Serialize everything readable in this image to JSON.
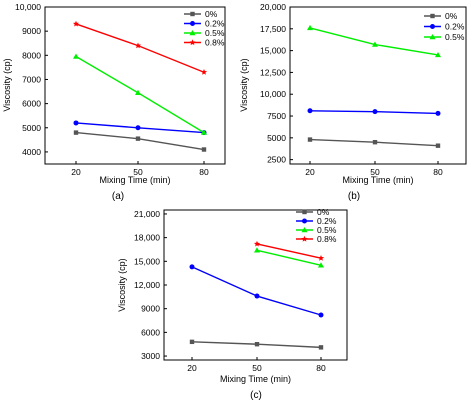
{
  "chart_data": [
    {
      "type": "line",
      "panel_label": "(a)",
      "xlabel": "Mixing Time (min)",
      "ylabel": "Viscosity (cp)",
      "x": [
        20,
        50,
        80
      ],
      "x_ticks": [
        "20",
        "50",
        "80"
      ],
      "ylim": [
        3500,
        10000
      ],
      "y_ticks": [
        4000,
        5000,
        6000,
        7000,
        8000,
        9000,
        10000
      ],
      "y_tick_labels": [
        "4000",
        "5000",
        "6000",
        "7000",
        "8000",
        "9000",
        "10,000"
      ],
      "legend_position": "top-right",
      "series": [
        {
          "name": "0%",
          "color": "#555555",
          "marker": "square",
          "x": [
            20,
            50,
            80
          ],
          "values": [
            4800,
            4550,
            4100
          ]
        },
        {
          "name": "0.2%",
          "color": "#0000ff",
          "marker": "circle",
          "x": [
            20,
            50,
            80
          ],
          "values": [
            5200,
            5000,
            4800
          ]
        },
        {
          "name": "0.5%",
          "color": "#00ee00",
          "marker": "triangle",
          "x": [
            20,
            50,
            80
          ],
          "values": [
            7950,
            6450,
            4800
          ]
        },
        {
          "name": "0.8%",
          "color": "#ff0000",
          "marker": "star",
          "x": [
            20,
            50,
            80
          ],
          "values": [
            9300,
            8400,
            7300
          ]
        }
      ]
    },
    {
      "type": "line",
      "panel_label": "(b)",
      "xlabel": "Mixing Time (min)",
      "ylabel": "Viscosity (cp)",
      "x": [
        20,
        50,
        80
      ],
      "x_ticks": [
        "20",
        "50",
        "80"
      ],
      "ylim": [
        2000,
        20000
      ],
      "y_ticks": [
        2500,
        5000,
        7500,
        10000,
        12500,
        15000,
        17500,
        20000
      ],
      "y_tick_labels": [
        "2500",
        "5000",
        "7500",
        "10,000",
        "12,500",
        "15,000",
        "17,500",
        "20,000"
      ],
      "legend_position": "top-right",
      "series": [
        {
          "name": "0%",
          "color": "#555555",
          "marker": "square",
          "x": [
            20,
            50,
            80
          ],
          "values": [
            4800,
            4500,
            4100
          ]
        },
        {
          "name": "0.2%",
          "color": "#0000ff",
          "marker": "circle",
          "x": [
            20,
            50,
            80
          ],
          "values": [
            8100,
            8000,
            7800
          ]
        },
        {
          "name": "0.5%",
          "color": "#00ee00",
          "marker": "triangle",
          "x": [
            20,
            50,
            80
          ],
          "values": [
            17600,
            15700,
            14500
          ]
        }
      ]
    },
    {
      "type": "line",
      "panel_label": "(c)",
      "xlabel": "Mixing Time (min)",
      "ylabel": "Viscosity (cp)",
      "x": [
        20,
        50,
        80
      ],
      "x_ticks": [
        "20",
        "50",
        "80"
      ],
      "ylim": [
        2500,
        21500
      ],
      "y_ticks": [
        3000,
        6000,
        9000,
        12000,
        15000,
        18000,
        21000
      ],
      "y_tick_labels": [
        "3000",
        "6000",
        "9000",
        "12,000",
        "15,000",
        "18,000",
        "21,000"
      ],
      "legend_position": "top-right",
      "series": [
        {
          "name": "0%",
          "color": "#555555",
          "marker": "square",
          "x": [
            20,
            50,
            80
          ],
          "values": [
            4800,
            4500,
            4100
          ]
        },
        {
          "name": "0.2%",
          "color": "#0000ff",
          "marker": "circle",
          "x": [
            20,
            50,
            80
          ],
          "values": [
            14300,
            10600,
            8200
          ]
        },
        {
          "name": "0.5%",
          "color": "#00ee00",
          "marker": "triangle",
          "x": [
            50,
            80
          ],
          "values": [
            16400,
            14500
          ]
        },
        {
          "name": "0.8%",
          "color": "#ff0000",
          "marker": "star",
          "x": [
            50,
            80
          ],
          "values": [
            17200,
            15400
          ]
        }
      ]
    }
  ]
}
